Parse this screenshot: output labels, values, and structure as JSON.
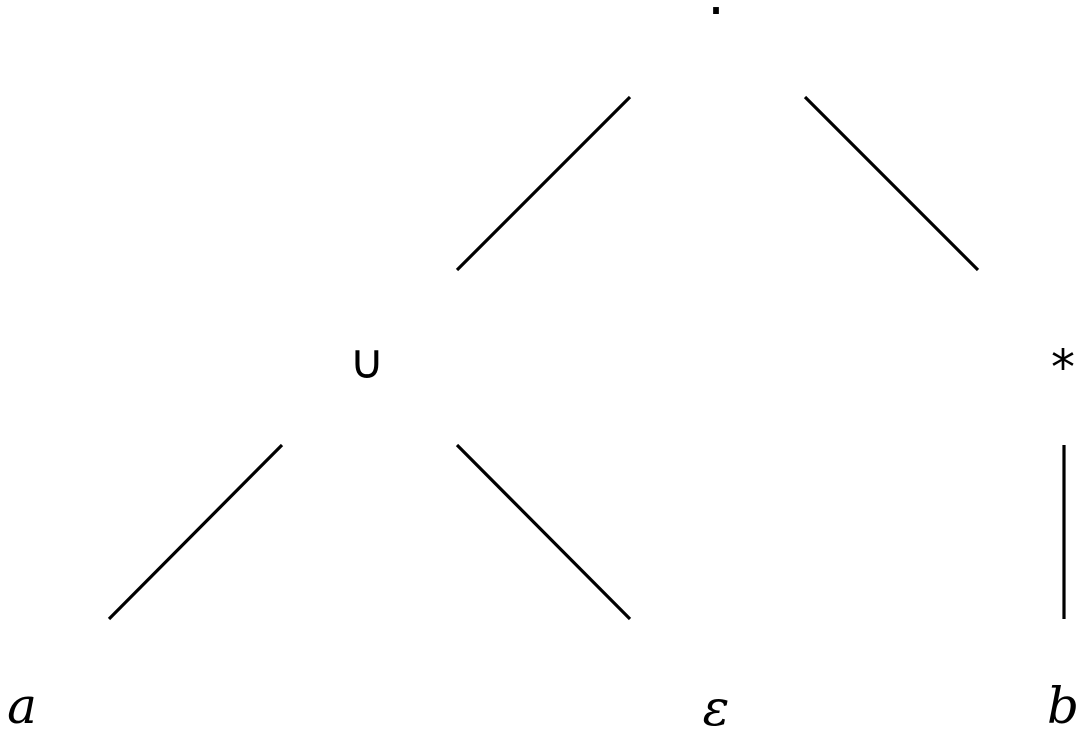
{
  "tree": {
    "root": {
      "symbol": "·",
      "children": [
        {
          "symbol": "∪",
          "children": [
            {
              "symbol": "a"
            },
            {
              "symbol": "ε"
            }
          ]
        },
        {
          "symbol": "*",
          "children": [
            {
              "symbol": "b"
            }
          ]
        }
      ]
    }
  }
}
